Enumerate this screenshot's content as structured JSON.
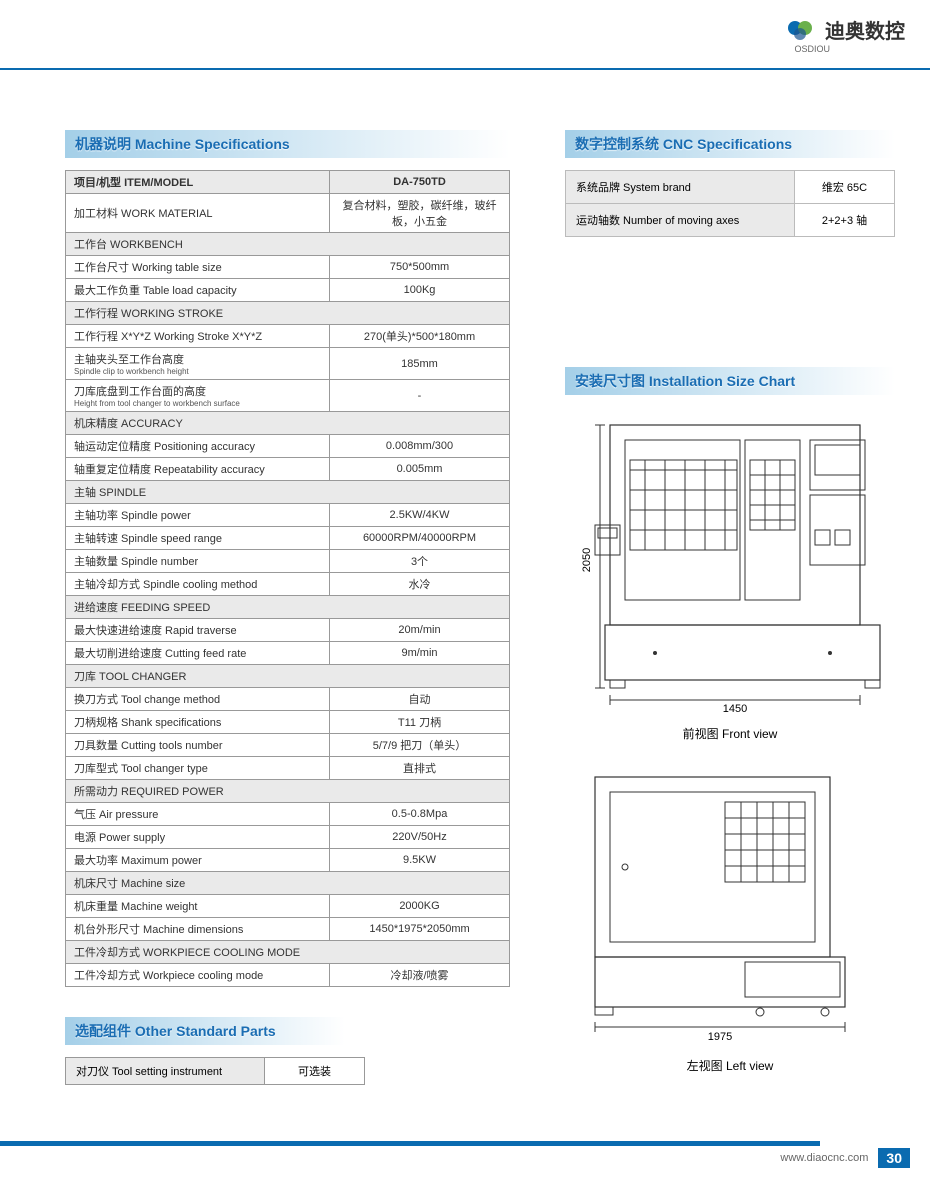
{
  "brand": {
    "name": "迪奥数控",
    "sub": "OSDIOU"
  },
  "section_titles": {
    "machine_spec": "机器说明  Machine Specifications",
    "cnc_spec": "数字控制系统 CNC Specifications",
    "other_parts": "选配组件  Other Standard Parts",
    "install_chart": "安装尺寸图  Installation Size Chart"
  },
  "spec_header": {
    "item": "项目/机型 ITEM/MODEL",
    "model": "DA-750TD"
  },
  "specs": [
    {
      "label": "加工材料 WORK MATERIAL",
      "value": "复合材料，塑胶，碳纤维，玻纤板，小五金",
      "section": false
    },
    {
      "label": "工作台 WORKBENCH",
      "value": "",
      "section": true
    },
    {
      "label": "工作台尺寸 Working table size",
      "value": "750*500mm",
      "section": false
    },
    {
      "label": "最大工作负重 Table load capacity",
      "value": "100Kg",
      "section": false
    },
    {
      "label": "工作行程 WORKING STROKE",
      "value": "",
      "section": true
    },
    {
      "label": "工作行程 X*Y*Z  Working Stroke X*Y*Z",
      "value": "270(单头)*500*180mm",
      "section": false
    },
    {
      "label": "主轴夹头至工作台高度",
      "sub": "Spindle clip to workbench height",
      "value": "185mm",
      "section": false
    },
    {
      "label": "刀库底盘到工作台面的高度",
      "sub": "Height from tool changer to workbench surface",
      "value": "-",
      "section": false
    },
    {
      "label": "机床精度 ACCURACY",
      "value": "",
      "section": true
    },
    {
      "label": "轴运动定位精度 Positioning accuracy",
      "value": "0.008mm/300",
      "section": false
    },
    {
      "label": "轴重复定位精度 Repeatability accuracy",
      "value": "0.005mm",
      "section": false
    },
    {
      "label": "主轴 SPINDLE",
      "value": "",
      "section": true
    },
    {
      "label": "主轴功率 Spindle power",
      "value": "2.5KW/4KW",
      "section": false
    },
    {
      "label": "主轴转速 Spindle speed range",
      "value": "60000RPM/40000RPM",
      "section": false
    },
    {
      "label": "主轴数量 Spindle number",
      "value": "3个",
      "section": false
    },
    {
      "label": "主轴冷却方式 Spindle cooling method",
      "value": "水冷",
      "section": false
    },
    {
      "label": "进给速度 FEEDING SPEED",
      "value": "",
      "section": true
    },
    {
      "label": "最大快速进给速度 Rapid traverse",
      "value": "20m/min",
      "section": false
    },
    {
      "label": "最大切削进给速度 Cutting feed rate",
      "value": "9m/min",
      "section": false
    },
    {
      "label": "刀库 TOOL CHANGER",
      "value": "",
      "section": true
    },
    {
      "label": "换刀方式 Tool change method",
      "value": "自动",
      "section": false
    },
    {
      "label": "刀柄规格 Shank specifications",
      "value": "T11 刀柄",
      "section": false
    },
    {
      "label": "刀具数量 Cutting tools number",
      "value": "5/7/9 把刀（单头）",
      "section": false
    },
    {
      "label": "刀库型式 Tool changer type",
      "value": "直排式",
      "section": false
    },
    {
      "label": "所需动力 REQUIRED POWER",
      "value": "",
      "section": true
    },
    {
      "label": "气压 Air pressure",
      "value": "0.5-0.8Mpa",
      "section": false
    },
    {
      "label": "电源 Power supply",
      "value": "220V/50Hz",
      "section": false
    },
    {
      "label": "最大功率 Maximum power",
      "value": "9.5KW",
      "section": false
    },
    {
      "label": "机床尺寸 Machine size",
      "value": "",
      "section": true
    },
    {
      "label": "机床重量 Machine weight",
      "value": "2000KG",
      "section": false
    },
    {
      "label": "机台外形尺寸 Machine dimensions",
      "value": "1450*1975*2050mm",
      "section": false
    },
    {
      "label": "工件冷却方式 WORKPIECE COOLING MODE",
      "value": "",
      "section": true
    },
    {
      "label": "工件冷却方式 Workpiece cooling mode",
      "value": "冷却液/喷雾",
      "section": false
    }
  ],
  "cnc": [
    {
      "label": "系统品牌 System brand",
      "value": "维宏 65C"
    },
    {
      "label": "运动轴数 Number of moving axes",
      "value": "2+2+3 轴"
    }
  ],
  "parts": [
    {
      "label": "对刀仪 Tool setting instrument",
      "value": "可选装"
    }
  ],
  "diagrams": {
    "front": {
      "width": "1450",
      "height": "2050",
      "label": "前视图  Front view"
    },
    "left": {
      "width": "1975",
      "label": "左视图  Left view"
    }
  },
  "footer": {
    "url": "www.diaocnc.com",
    "page": "30"
  },
  "colors": {
    "primary": "#0a6bb0",
    "header_bg": "#a4cfe8",
    "table_section": "#eaeaea",
    "border": "#999"
  }
}
